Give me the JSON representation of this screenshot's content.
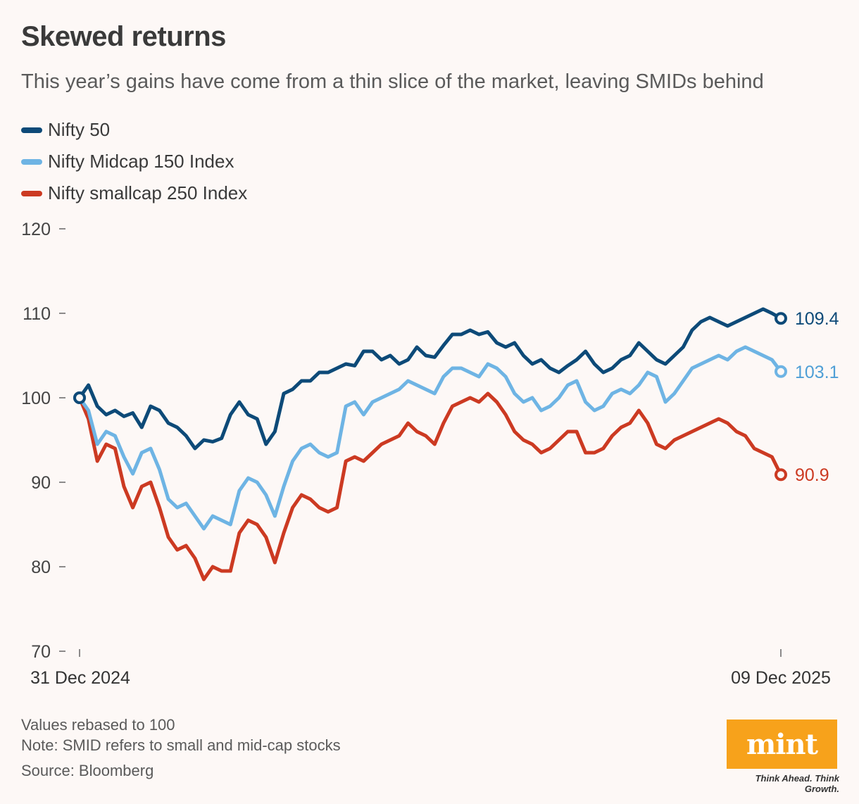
{
  "title": "Skewed returns",
  "subtitle": "This year’s gains have come from a thin slice of the market, leaving SMIDs behind",
  "notes": {
    "line1": "Values rebased to 100",
    "line2": "Note: SMID refers to small and mid-cap stocks",
    "source": "Source: Bloomberg"
  },
  "logo": {
    "text": "mint",
    "tagline": "Think Ahead. Think Growth."
  },
  "colors": {
    "nifty50": "#0d4a78",
    "midcap": "#6eb4e4",
    "smallcap": "#cc3a22",
    "background": "#fdf8f6",
    "logo": "#f7a21b"
  },
  "chart_data": {
    "type": "line",
    "title": "Skewed returns",
    "ylabel": "Values rebased to 100",
    "xlabel": "",
    "ylim": [
      70,
      120
    ],
    "yticks": [
      70,
      80,
      90,
      100,
      110,
      120
    ],
    "xticks": [
      "31 Dec 2024",
      "09 Dec 2025"
    ],
    "x_start": "31 Dec 2024",
    "x_end": "09 Dec 2025",
    "series": [
      {
        "name": "Nifty 50",
        "color": "#0d4a78",
        "end_label": "109.4",
        "values": [
          100.0,
          101.5,
          99.0,
          98.0,
          98.5,
          97.8,
          98.2,
          96.5,
          99.0,
          98.5,
          97.0,
          96.5,
          95.5,
          94.0,
          95.0,
          94.8,
          95.2,
          98.0,
          99.5,
          98.0,
          97.5,
          94.5,
          96.0,
          100.5,
          101.0,
          102.0,
          102.0,
          103.0,
          103.0,
          103.5,
          104.0,
          103.8,
          105.5,
          105.5,
          104.5,
          105.0,
          104.0,
          104.5,
          106.0,
          105.0,
          104.8,
          106.2,
          107.5,
          107.5,
          108.0,
          107.5,
          107.8,
          106.5,
          106.0,
          106.5,
          105.0,
          104.0,
          104.5,
          103.5,
          103.0,
          103.8,
          104.5,
          105.5,
          104.0,
          103.0,
          103.5,
          104.5,
          105.0,
          106.5,
          105.5,
          104.5,
          104.0,
          105.0,
          106.0,
          108.0,
          109.0,
          109.5,
          109.0,
          108.5,
          109.0,
          109.5,
          110.0,
          110.5,
          110.0,
          109.4
        ]
      },
      {
        "name": "Nifty Midcap 150 Index",
        "color": "#6eb4e4",
        "end_label": "103.1",
        "values": [
          100.0,
          98.5,
          94.5,
          96.0,
          95.5,
          93.0,
          91.0,
          93.5,
          94.0,
          91.5,
          88.0,
          87.0,
          87.5,
          86.0,
          84.5,
          86.0,
          85.5,
          85.0,
          89.0,
          90.5,
          90.0,
          88.5,
          86.0,
          89.5,
          92.5,
          94.0,
          94.5,
          93.5,
          93.0,
          93.5,
          99.0,
          99.5,
          98.0,
          99.5,
          100.0,
          100.5,
          101.0,
          102.0,
          101.5,
          101.0,
          100.5,
          102.5,
          103.5,
          103.5,
          103.0,
          102.5,
          104.0,
          103.5,
          102.5,
          100.5,
          99.5,
          100.0,
          98.5,
          99.0,
          100.0,
          101.5,
          102.0,
          99.5,
          98.5,
          99.0,
          100.5,
          101.0,
          100.5,
          101.5,
          103.0,
          102.5,
          99.5,
          100.5,
          102.0,
          103.5,
          104.0,
          104.5,
          105.0,
          104.5,
          105.5,
          106.0,
          105.5,
          105.0,
          104.5,
          103.1
        ]
      },
      {
        "name": "Nifty smallcap 250 Index",
        "color": "#cc3a22",
        "end_label": "90.9",
        "values": [
          100.0,
          97.5,
          92.5,
          94.5,
          94.0,
          89.5,
          87.0,
          89.5,
          90.0,
          87.0,
          83.5,
          82.0,
          82.5,
          81.0,
          78.5,
          80.0,
          79.5,
          79.5,
          84.0,
          85.5,
          85.0,
          83.5,
          80.5,
          84.0,
          87.0,
          88.5,
          88.0,
          87.0,
          86.5,
          87.0,
          92.5,
          93.0,
          92.5,
          93.5,
          94.5,
          95.0,
          95.5,
          97.0,
          96.0,
          95.5,
          94.5,
          97.0,
          99.0,
          99.5,
          100.0,
          99.5,
          100.5,
          99.5,
          98.0,
          96.0,
          95.0,
          94.5,
          93.5,
          94.0,
          95.0,
          96.0,
          96.0,
          93.5,
          93.5,
          94.0,
          95.5,
          96.5,
          97.0,
          98.5,
          97.0,
          94.5,
          94.0,
          95.0,
          95.5,
          96.0,
          96.5,
          97.0,
          97.5,
          97.0,
          96.0,
          95.5,
          94.0,
          93.5,
          93.0,
          90.9
        ]
      }
    ]
  }
}
